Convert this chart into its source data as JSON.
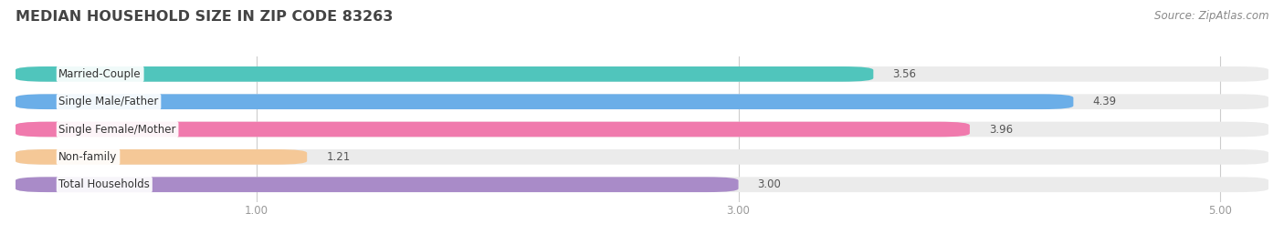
{
  "title": "MEDIAN HOUSEHOLD SIZE IN ZIP CODE 83263",
  "source": "Source: ZipAtlas.com",
  "categories": [
    "Married-Couple",
    "Single Male/Father",
    "Single Female/Mother",
    "Non-family",
    "Total Households"
  ],
  "values": [
    3.56,
    4.39,
    3.96,
    1.21,
    3.0
  ],
  "bar_colors": [
    "#50C5BC",
    "#6BAEE8",
    "#F07AAD",
    "#F5C897",
    "#A98BC8"
  ],
  "xlim_min": 0.0,
  "xlim_max": 5.2,
  "xticks": [
    1.0,
    3.0,
    5.0
  ],
  "xtick_labels": [
    "1.00",
    "3.00",
    "5.00"
  ],
  "bg_color": "#ffffff",
  "bar_bg_color": "#ebebeb",
  "title_fontsize": 11.5,
  "label_fontsize": 8.5,
  "value_fontsize": 8.5,
  "source_fontsize": 8.5,
  "bar_height": 0.55,
  "title_color": "#444444",
  "source_color": "#888888",
  "tick_color": "#999999",
  "value_color": "#555555",
  "label_text_color": "#333333",
  "grid_color": "#cccccc"
}
